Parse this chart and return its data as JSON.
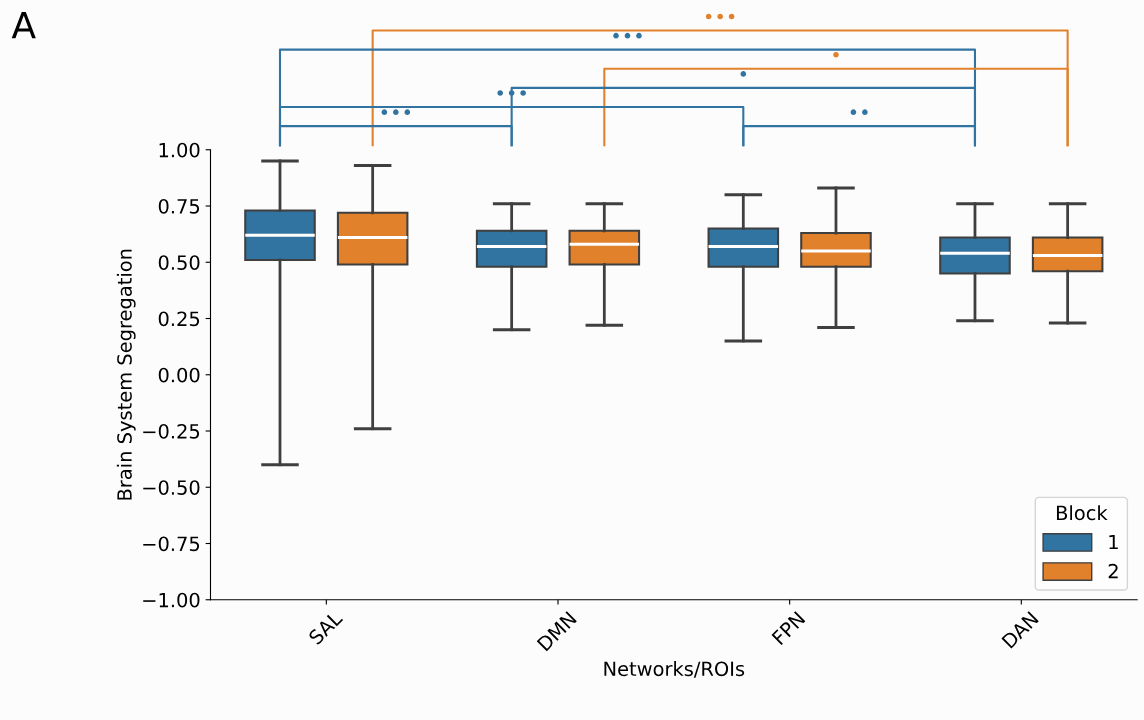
{
  "chart_data": {
    "type": "box",
    "xlabel": "Networks/ROIs",
    "ylabel": "Brain System Segregation",
    "legend_title": "Block",
    "legend": "bottom right",
    "grid": false,
    "categories": [
      "SAL",
      "DMN",
      "FPN",
      "DAN"
    ],
    "ylim": [
      -1.0,
      1.0
    ],
    "yticks": [
      {
        "value": -1,
        "label": "−1.00"
      },
      {
        "value": -0.75,
        "label": "−0.75"
      },
      {
        "value": -0.5,
        "label": "−0.50"
      },
      {
        "value": -0.25,
        "label": "−0.25"
      },
      {
        "value": 0,
        "label": "0.00"
      },
      {
        "value": 0.25,
        "label": "0.25"
      },
      {
        "value": 0.5,
        "label": "0.50"
      },
      {
        "value": 0.75,
        "label": "0.75"
      },
      {
        "value": 1,
        "label": "1.00"
      }
    ],
    "series": [
      {
        "name": "1",
        "color": "#3274a1",
        "boxes": [
          {
            "low": -0.4,
            "q1": 0.51,
            "median": 0.62,
            "q3": 0.73,
            "high": 0.95
          },
          {
            "low": 0.2,
            "q1": 0.48,
            "median": 0.57,
            "q3": 0.64,
            "high": 0.76
          },
          {
            "low": 0.15,
            "q1": 0.48,
            "median": 0.57,
            "q3": 0.65,
            "high": 0.8
          },
          {
            "low": 0.24,
            "q1": 0.45,
            "median": 0.54,
            "q3": 0.61,
            "high": 0.76
          }
        ]
      },
      {
        "name": "2",
        "color": "#e1812c",
        "boxes": [
          {
            "low": -0.24,
            "q1": 0.49,
            "median": 0.61,
            "q3": 0.72,
            "high": 0.93
          },
          {
            "low": 0.22,
            "q1": 0.49,
            "median": 0.58,
            "q3": 0.64,
            "high": 0.76
          },
          {
            "low": 0.21,
            "q1": 0.48,
            "median": 0.55,
            "q3": 0.63,
            "high": 0.83
          },
          {
            "low": 0.23,
            "q1": 0.46,
            "median": 0.53,
            "q3": 0.61,
            "high": 0.76
          }
        ]
      }
    ],
    "annotations": [
      "A",
      "•••",
      "•••",
      "•",
      "•",
      "•••",
      "•••",
      "••"
    ]
  }
}
